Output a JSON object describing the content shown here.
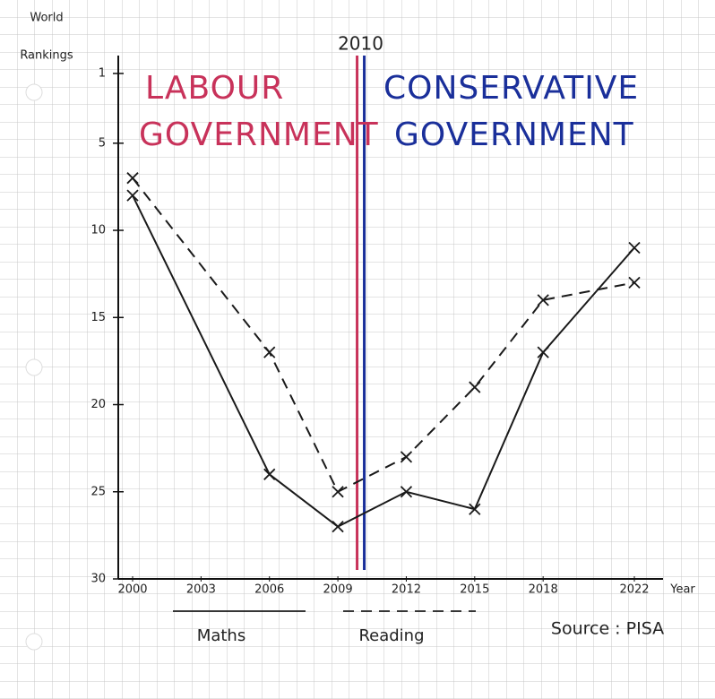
{
  "chart_data": {
    "type": "line",
    "y_axis_label": [
      "World",
      "Rankings"
    ],
    "x_axis_label": "Year",
    "x": [
      2000,
      2006,
      2009,
      2012,
      2015,
      2018,
      2022
    ],
    "xlim": [
      2000,
      2022
    ],
    "xticks": [
      2000,
      2003,
      2006,
      2009,
      2012,
      2015,
      2018,
      2022
    ],
    "ylim": [
      1,
      30
    ],
    "y_inverted": true,
    "yticks": [
      1,
      5,
      10,
      15,
      20,
      25,
      30
    ],
    "series": [
      {
        "name": "Maths",
        "color": "#1a1a1a",
        "dashed": false,
        "values": [
          8,
          24,
          27,
          25,
          26,
          17,
          11
        ]
      },
      {
        "name": "Reading",
        "color": "#1a1a1a",
        "dashed": true,
        "values": [
          7,
          17,
          25,
          23,
          19,
          14,
          13
        ]
      }
    ],
    "divider": {
      "x": 2010,
      "label": "2010"
    },
    "left_label": {
      "lines": [
        "LABOUR",
        "GOVERNMENT"
      ],
      "color": "#c8325a"
    },
    "right_label": {
      "lines": [
        "CONSERVATIVE",
        "GOVERNMENT"
      ],
      "color": "#1a2f9a"
    },
    "source": "Source : PISA"
  }
}
